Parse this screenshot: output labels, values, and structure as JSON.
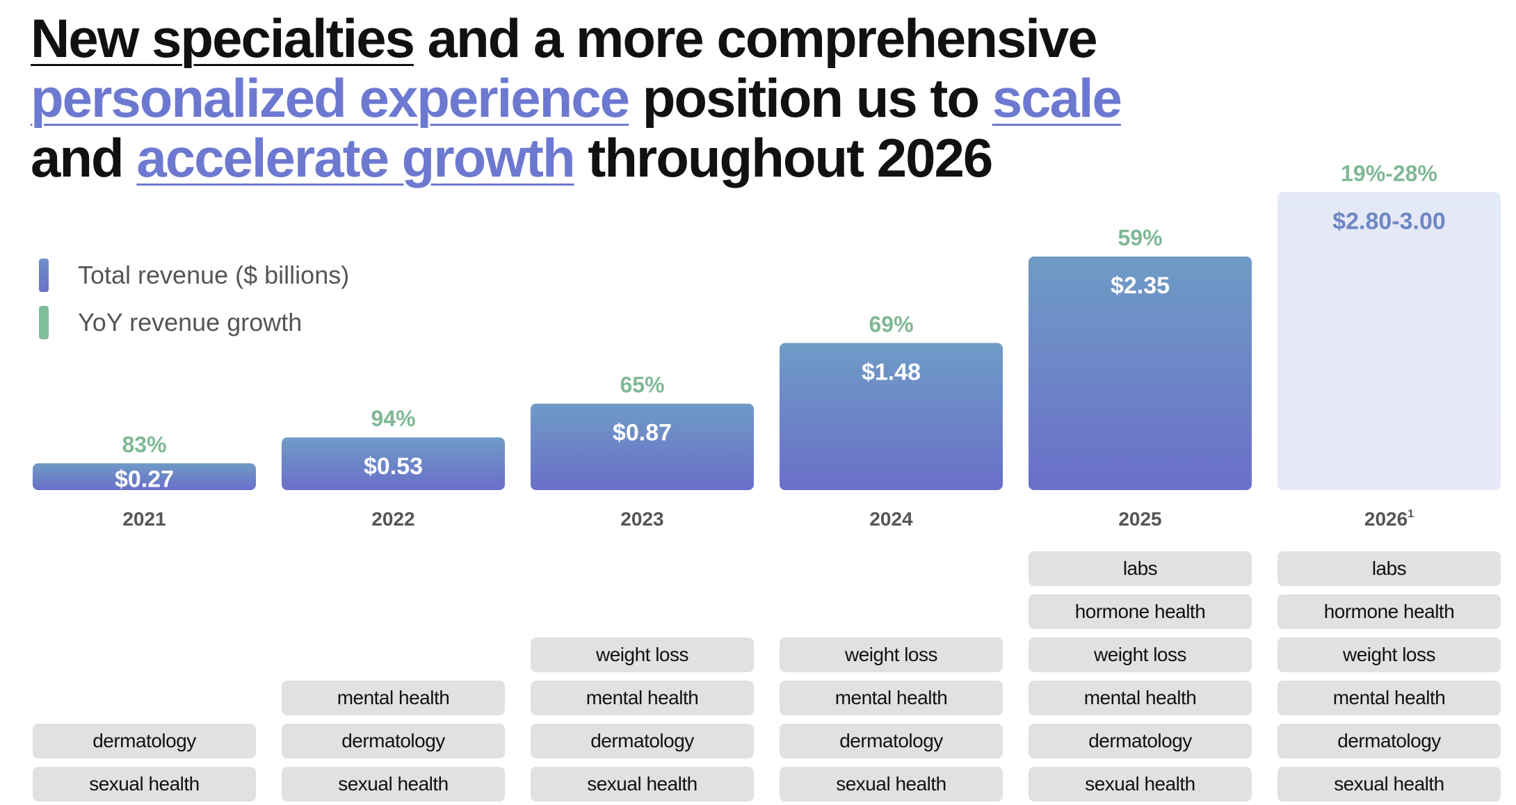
{
  "title": {
    "line1_a": "New specialties",
    "line1_b": " and a more comprehensive",
    "line2_a": "personalized experience",
    "line2_b": " position us to ",
    "line2_c": "scale",
    "line3_a": "and ",
    "line3_b": "accelerate growth",
    "line3_c": " throughout 2026"
  },
  "legend": [
    {
      "label": "Total revenue ($ billions)",
      "color": "#6a7dc9"
    },
    {
      "label": "YoY revenue growth",
      "color": "#7fbf9c"
    }
  ],
  "colors": {
    "bar_top": "#6f9bc6",
    "bar_bottom": "#6a6fc9",
    "forecast_bar": "#e6eaf6",
    "growth": "#7fbf9c",
    "pill": "#e1e1e1"
  },
  "chart_data": {
    "type": "bar",
    "categories": [
      "2021",
      "2022",
      "2023",
      "2024",
      "2025",
      "2026"
    ],
    "category_superscripts": [
      "",
      "",
      "",
      "",
      "",
      "1"
    ],
    "series": [
      {
        "name": "Total revenue ($ billions)",
        "values": [
          0.27,
          0.53,
          0.87,
          1.48,
          2.35,
          2.9
        ],
        "value_labels": [
          "$0.27",
          "$0.53",
          "$0.87",
          "$1.48",
          "$2.35",
          "$2.80-3.00"
        ]
      },
      {
        "name": "YoY revenue growth",
        "value_labels": [
          "83%",
          "94%",
          "65%",
          "69%",
          "59%",
          "19%-28%"
        ]
      }
    ],
    "forecast_index": 5,
    "ylim": [
      0,
      3.0
    ]
  },
  "specialties": [
    [
      "sexual health",
      "dermatology"
    ],
    [
      "sexual health",
      "dermatology",
      "mental health"
    ],
    [
      "sexual health",
      "dermatology",
      "mental health",
      "weight loss"
    ],
    [
      "sexual health",
      "dermatology",
      "mental health",
      "weight loss"
    ],
    [
      "sexual health",
      "dermatology",
      "mental health",
      "weight loss",
      "hormone health",
      "labs"
    ],
    [
      "sexual health",
      "dermatology",
      "mental health",
      "weight loss",
      "hormone health",
      "labs"
    ]
  ]
}
